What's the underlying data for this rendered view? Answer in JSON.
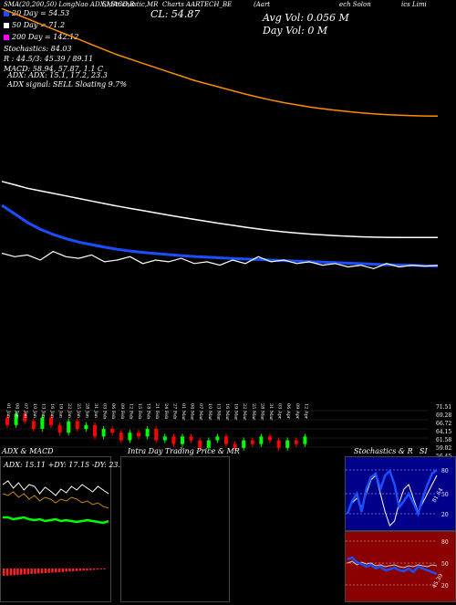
{
  "header": {
    "line1": "SMA(20,200,50) LongNao ADX,MACD,R",
    "line1b": "SI,Stochastic,MR",
    "line1c": "Charts AARTECH_BE",
    "line1d": "(Aart",
    "line1e": "ech Solon",
    "line1f": "ics Limi",
    "price_label": "CL: 54.87",
    "avg_vol": "Avg Vol: 0.056  M",
    "day_vol": "Day Vol: 0  M"
  },
  "legend": [
    {
      "label": "20  Day = 54.53",
      "color": "#1a4fff"
    },
    {
      "label": "50  Day = 71.2",
      "color": "#ffffff"
    },
    {
      "label": "200  Day = 142.12",
      "color": "#ff00ff"
    },
    {
      "label": "Stochastics: 84.03",
      "color": ""
    },
    {
      "label": "R          : 44.5/3: 45.39 / 89.11",
      "color": ""
    },
    {
      "label": "MACD: 58.94,  57.87,  1.1  C",
      "color": ""
    }
  ],
  "adx_line": "ADX:                        ADX: 15.1,  17.2,  23.3",
  "signal_line": "ADX  signal: SELL  Sloating 9.7%",
  "price_axis": [
    "71.51",
    "69.28",
    "66.72",
    "64.15",
    "61.58",
    "59.02",
    "56.45"
  ],
  "date_labels": [
    "01 Jan",
    "04 Jan",
    "07 Jan",
    "10 Jan",
    "13 Jan",
    "16 Jan",
    "19 Jan",
    "22 Jan",
    "25 Jan",
    "28 Jan",
    "31 Jan",
    "03 Feb",
    "06 Feb",
    "09 Feb",
    "12 Feb",
    "15 Feb",
    "18 Feb",
    "21 Feb",
    "24 Feb",
    "27 Feb",
    "01 Mar",
    "04 Mar",
    "07 Mar",
    "10 Mar",
    "13 Mar",
    "16 Mar",
    "19 Mar",
    "22 Mar",
    "25 Mar",
    "28 Mar",
    "31 Mar",
    "03 Apr",
    "06 Apr",
    "09 Apr",
    "12 Apr"
  ],
  "panels": {
    "adx_title": "ADX  & MACD",
    "adx_readout": "ADX: 15.11  +DY: 17.15  -DY: 23.26",
    "intraday_title": "Intra  Day  Trading  Price  &  MR",
    "stoch_title": "Stochastics & R",
    "si_title": "SI",
    "stoch_axis": [
      "80",
      "50",
      "20"
    ],
    "rsi_axis": [
      "80",
      "50",
      "20"
    ],
    "stoch_value": "81.64",
    "rsi_value": "45.39"
  },
  "chart_data": {
    "type": "line",
    "title": "",
    "series": [
      {
        "name": "20 Day",
        "color": "#1a4fff",
        "values": [
          90,
          85,
          80,
          76,
          73,
          70.5,
          68.5,
          67,
          65.5,
          64.3,
          63.3,
          62.5,
          61.8,
          61.2,
          60.6,
          60.1,
          59.7,
          59.3,
          58.9,
          58.6,
          58.3,
          58,
          57.7,
          57.4,
          57.1,
          56.8,
          56.5,
          56.2,
          55.9,
          55.6,
          55.3,
          55.1,
          54.9,
          54.7,
          54.53
        ]
      },
      {
        "name": "50 Day",
        "color": "#ffffff",
        "values": [
          104,
          102,
          100,
          98.5,
          97,
          95.5,
          94,
          92.5,
          91,
          89.6,
          88.2,
          86.9,
          85.6,
          84.3,
          83,
          81.8,
          80.6,
          79.4,
          78.3,
          77.2,
          76.2,
          75.3,
          74.5,
          73.8,
          73.2,
          72.7,
          72.3,
          71.9,
          71.6,
          71.4,
          71.3,
          71.25,
          71.22,
          71.21,
          71.2
        ]
      },
      {
        "name": "200 Day",
        "color": "#ff8c00",
        "values": [
          205,
          202,
          199,
          196,
          193,
          190,
          187,
          184,
          181,
          178,
          175.5,
          173,
          170.5,
          168,
          165.5,
          163,
          161,
          159,
          157,
          155,
          153.2,
          151.5,
          150,
          148.7,
          147.5,
          146.5,
          145.6,
          144.8,
          144.1,
          143.5,
          143,
          142.7,
          142.4,
          142.2,
          142.12
        ]
      },
      {
        "name": "Price",
        "color": "#ffffff",
        "values": [
          62,
          60,
          61,
          58,
          63,
          60,
          59,
          61,
          57,
          58,
          60,
          56,
          58,
          57,
          59,
          56,
          57,
          55,
          58,
          56,
          60,
          57,
          58,
          56,
          57,
          55,
          56,
          54,
          55,
          53,
          56,
          54,
          55,
          54.5,
          54.87
        ]
      }
    ],
    "candles": [
      {
        "o": 63,
        "c": 61
      },
      {
        "o": 61,
        "c": 64
      },
      {
        "o": 64,
        "c": 62
      },
      {
        "o": 62,
        "c": 60
      },
      {
        "o": 60,
        "c": 63
      },
      {
        "o": 63,
        "c": 61
      },
      {
        "o": 61,
        "c": 59
      },
      {
        "o": 59,
        "c": 62
      },
      {
        "o": 62,
        "c": 60
      },
      {
        "o": 60,
        "c": 61
      },
      {
        "o": 61,
        "c": 58
      },
      {
        "o": 58,
        "c": 60
      },
      {
        "o": 60,
        "c": 59
      },
      {
        "o": 59,
        "c": 57
      },
      {
        "o": 57,
        "c": 59
      },
      {
        "o": 59,
        "c": 58
      },
      {
        "o": 58,
        "c": 60
      },
      {
        "o": 60,
        "c": 57
      },
      {
        "o": 57,
        "c": 58
      },
      {
        "o": 58,
        "c": 56
      },
      {
        "o": 56,
        "c": 58
      },
      {
        "o": 58,
        "c": 57
      },
      {
        "o": 57,
        "c": 55
      },
      {
        "o": 55,
        "c": 57
      },
      {
        "o": 57,
        "c": 58
      },
      {
        "o": 58,
        "c": 56
      },
      {
        "o": 56,
        "c": 55
      },
      {
        "o": 55,
        "c": 57
      },
      {
        "o": 57,
        "c": 56
      },
      {
        "o": 56,
        "c": 58
      },
      {
        "o": 58,
        "c": 57
      },
      {
        "o": 57,
        "c": 55
      },
      {
        "o": 55,
        "c": 57
      },
      {
        "o": 57,
        "c": 56
      },
      {
        "o": 56,
        "c": 58
      }
    ]
  }
}
